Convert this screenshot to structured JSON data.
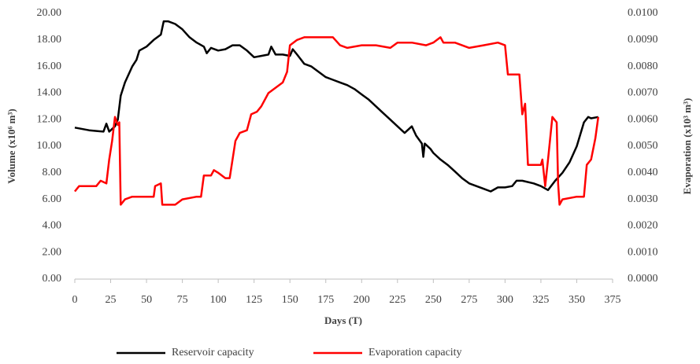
{
  "chart_data": {
    "type": "line",
    "xlabel": "Days (T)",
    "ylabel": "Volume (x10⁶ m³)",
    "y2label": "Evaporation (x10³ m³)",
    "xlim": [
      0,
      375
    ],
    "xticks": [
      0,
      25,
      50,
      75,
      100,
      125,
      150,
      175,
      200,
      225,
      250,
      275,
      300,
      325,
      350,
      375
    ],
    "ylim": [
      0,
      20
    ],
    "yticks": [
      {
        "value": 0,
        "label": "0.00"
      },
      {
        "value": 2,
        "label": "2.00"
      },
      {
        "value": 4,
        "label": "4.00"
      },
      {
        "value": 6,
        "label": "6.00"
      },
      {
        "value": 8,
        "label": "8.00"
      },
      {
        "value": 10,
        "label": "10.00"
      },
      {
        "value": 12,
        "label": "12.00"
      },
      {
        "value": 14,
        "label": "14.00"
      },
      {
        "value": 16,
        "label": "16.00"
      },
      {
        "value": 18,
        "label": "18.00"
      },
      {
        "value": 20,
        "label": "20.00"
      }
    ],
    "y2lim": [
      0,
      0.01
    ],
    "y2ticks": [
      {
        "value": 0,
        "label": "0.0000"
      },
      {
        "value": 0.001,
        "label": "0.0010"
      },
      {
        "value": 0.002,
        "label": "0.0020"
      },
      {
        "value": 0.003,
        "label": "0.0030"
      },
      {
        "value": 0.004,
        "label": "0.0040"
      },
      {
        "value": 0.005,
        "label": "0.0050"
      },
      {
        "value": 0.006,
        "label": "0.0060"
      },
      {
        "value": 0.007,
        "label": "0.0070"
      },
      {
        "value": 0.008,
        "label": "0.0080"
      },
      {
        "value": 0.009,
        "label": "0.0090"
      },
      {
        "value": 0.01,
        "label": "0.0100"
      }
    ],
    "legend": "bottom",
    "series": [
      {
        "name": "Reservoir capacity",
        "color": "#000000",
        "x": [
          0,
          10,
          20,
          22,
          24,
          28,
          30,
          32,
          35,
          40,
          43,
          45,
          50,
          55,
          60,
          62,
          65,
          70,
          75,
          80,
          85,
          90,
          92,
          95,
          100,
          105,
          110,
          115,
          120,
          125,
          130,
          135,
          137,
          140,
          145,
          150,
          152,
          155,
          160,
          165,
          170,
          175,
          180,
          185,
          190,
          195,
          200,
          205,
          210,
          215,
          220,
          225,
          230,
          235,
          238,
          242,
          243,
          244,
          248,
          250,
          255,
          260,
          265,
          270,
          275,
          280,
          285,
          290,
          295,
          300,
          305,
          308,
          312,
          320,
          325,
          330,
          335,
          340,
          345,
          350,
          355,
          358,
          360,
          365
        ],
        "values": [
          11.4,
          11.2,
          11.1,
          11.7,
          11.1,
          11.5,
          12.0,
          13.8,
          14.8,
          16.0,
          16.5,
          17.2,
          17.5,
          18.0,
          18.4,
          19.4,
          19.4,
          19.2,
          18.8,
          18.2,
          17.8,
          17.5,
          17.0,
          17.4,
          17.2,
          17.3,
          17.6,
          17.6,
          17.2,
          16.7,
          16.8,
          16.9,
          17.5,
          16.9,
          16.9,
          16.8,
          17.3,
          16.9,
          16.2,
          16.0,
          15.6,
          15.2,
          15.0,
          14.8,
          14.6,
          14.3,
          13.9,
          13.5,
          13.0,
          12.5,
          12.0,
          11.5,
          11.0,
          11.5,
          10.8,
          10.2,
          9.2,
          10.2,
          9.8,
          9.5,
          9.0,
          8.6,
          8.1,
          7.6,
          7.2,
          7.0,
          6.8,
          6.6,
          6.9,
          6.9,
          7.0,
          7.4,
          7.4,
          7.2,
          7.0,
          6.7,
          7.4,
          8.0,
          8.8,
          10.0,
          11.8,
          12.2,
          12.1,
          12.2
        ]
      },
      {
        "name": "Evaporation capacity",
        "color": "#ff0000",
        "axis": "y2",
        "x": [
          0,
          3,
          10,
          15,
          18,
          22,
          24,
          26,
          28,
          30,
          31,
          32,
          35,
          40,
          50,
          55,
          56,
          60,
          61,
          70,
          75,
          85,
          88,
          90,
          95,
          97,
          100,
          105,
          108,
          112,
          115,
          120,
          123,
          127,
          130,
          135,
          140,
          145,
          148,
          150,
          155,
          160,
          170,
          180,
          185,
          190,
          200,
          210,
          220,
          225,
          235,
          245,
          250,
          255,
          257,
          265,
          275,
          285,
          295,
          300,
          302,
          310,
          312,
          314,
          316,
          325,
          326,
          328,
          330,
          333,
          336,
          337,
          338,
          340,
          350,
          355,
          357,
          360,
          363,
          365
        ],
        "values": [
          0.0033,
          0.0035,
          0.0035,
          0.0035,
          0.0037,
          0.0036,
          0.0045,
          0.0052,
          0.0061,
          0.0058,
          0.0059,
          0.0028,
          0.003,
          0.0031,
          0.0031,
          0.0031,
          0.0035,
          0.0036,
          0.0028,
          0.0028,
          0.003,
          0.0031,
          0.0031,
          0.0039,
          0.0039,
          0.0041,
          0.004,
          0.0038,
          0.0038,
          0.0052,
          0.0055,
          0.0056,
          0.0062,
          0.0063,
          0.0065,
          0.007,
          0.0072,
          0.0074,
          0.0078,
          0.0088,
          0.009,
          0.0091,
          0.0091,
          0.0091,
          0.0088,
          0.0087,
          0.0088,
          0.0088,
          0.0087,
          0.0089,
          0.0089,
          0.0088,
          0.0089,
          0.0091,
          0.0089,
          0.0089,
          0.0087,
          0.0088,
          0.0089,
          0.0088,
          0.0077,
          0.0077,
          0.0062,
          0.0066,
          0.0043,
          0.0043,
          0.0045,
          0.0035,
          0.0045,
          0.0061,
          0.0059,
          0.0036,
          0.0028,
          0.003,
          0.0031,
          0.0031,
          0.0043,
          0.0045,
          0.0053,
          0.0061
        ]
      }
    ]
  }
}
